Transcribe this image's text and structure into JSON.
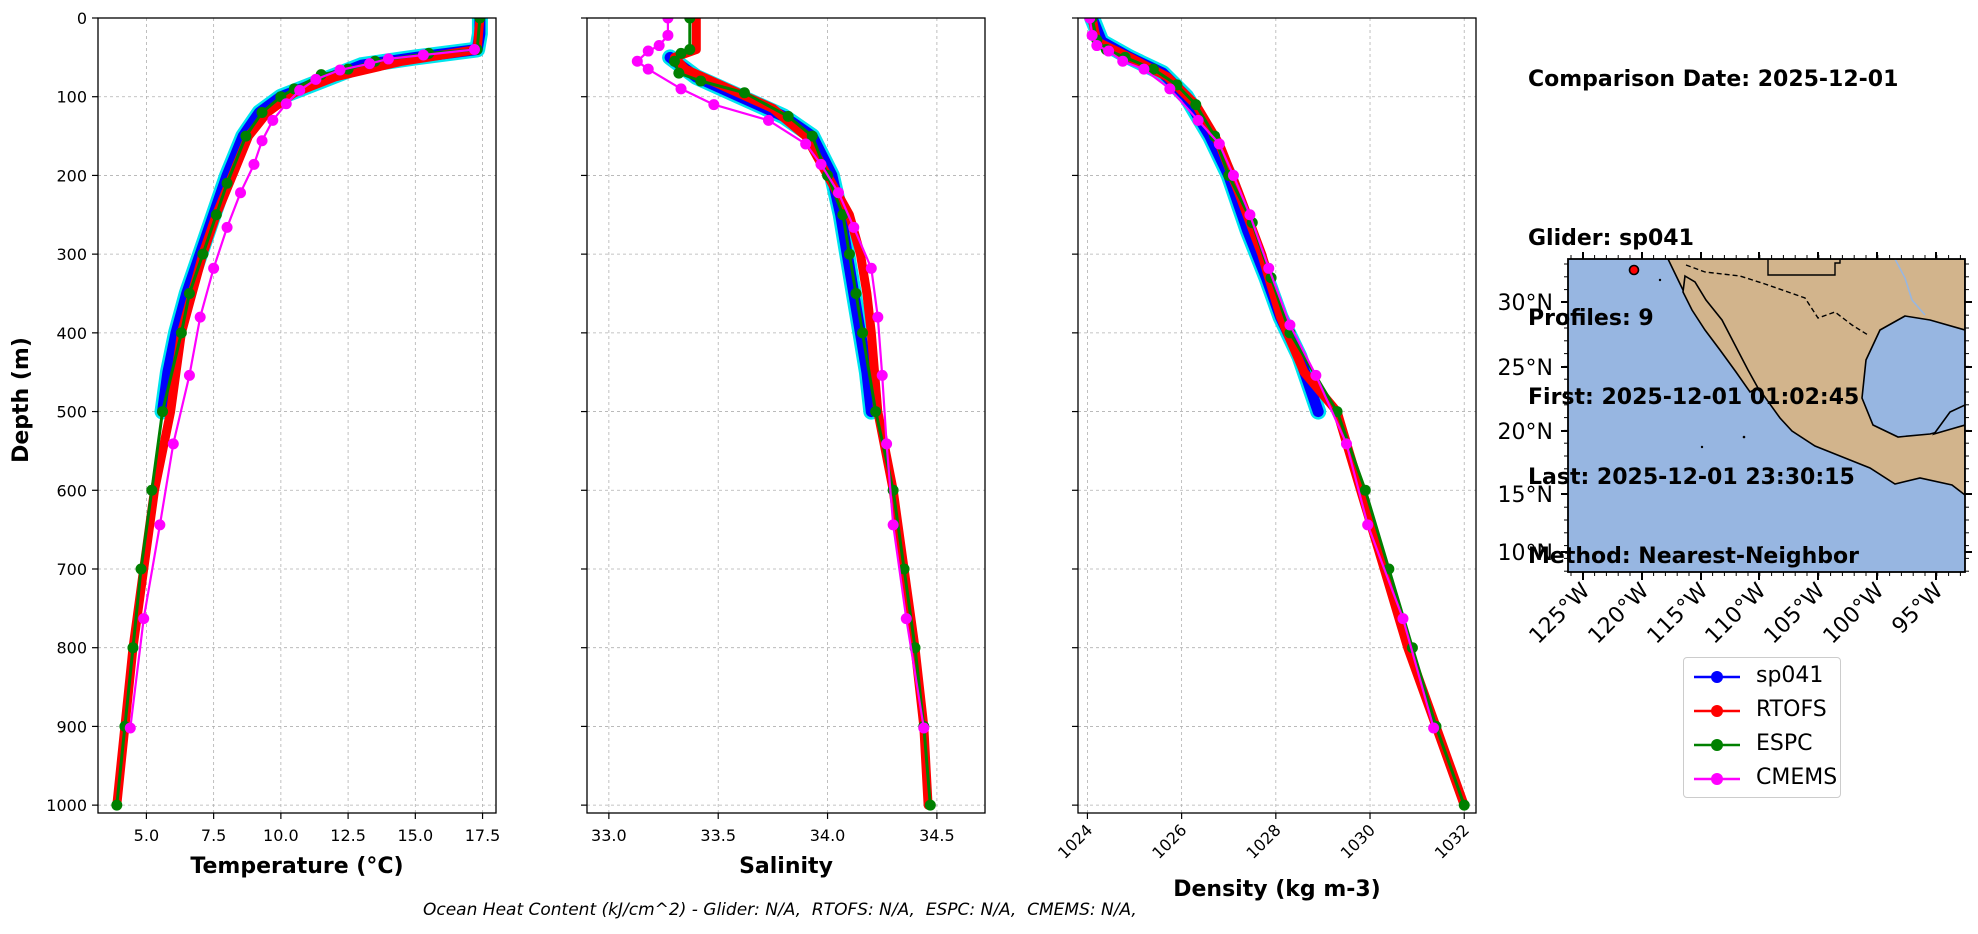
{
  "info": {
    "comparison_date": "Comparison Date: 2025-12-01",
    "glider": "Glider: sp041",
    "profiles": "Profiles: 9",
    "first": "First: 2025-12-01 01:02:45",
    "last": "Last: 2025-12-01 23:30:15",
    "method": "Method: Nearest-Neighbor"
  },
  "footer": "Ocean Heat Content (kJ/cm^2) - Glider: N/A,  RTOFS: N/A,  ESPC: N/A,  CMEMS: N/A,",
  "colors": {
    "sp041": "#0000ff",
    "sp041_alt": "#00e5ee",
    "RTOFS": "#ff0000",
    "ESPC": "#008000",
    "CMEMS": "#ff00ff",
    "ocean": "#97b6e1",
    "land": "#d2b48c"
  },
  "legend": [
    {
      "name": "sp041",
      "color": "#0000ff"
    },
    {
      "name": "RTOFS",
      "color": "#ff0000"
    },
    {
      "name": "ESPC",
      "color": "#008000"
    },
    {
      "name": "CMEMS",
      "color": "#ff00ff"
    }
  ],
  "chart_data": [
    {
      "type": "line",
      "xlabel": "Temperature (°C)",
      "ylabel": "Depth (m)",
      "xlim": [
        3.2,
        18.0
      ],
      "ylim": [
        1010,
        0
      ],
      "xticks": [
        5.0,
        7.5,
        10.0,
        12.5,
        15.0,
        17.5
      ],
      "xtick_labels": [
        "5.0",
        "7.5",
        "10.0",
        "12.5",
        "15.0",
        "17.5"
      ],
      "yticks": [
        0,
        100,
        200,
        300,
        400,
        500,
        600,
        700,
        800,
        900,
        1000
      ],
      "grid": true,
      "series": [
        {
          "name": "sp041",
          "color": "#0000ff",
          "points": [
            [
              17.4,
              0
            ],
            [
              17.4,
              20
            ],
            [
              17.3,
              40
            ],
            [
              15.0,
              50
            ],
            [
              13.0,
              60
            ],
            [
              11.5,
              80
            ],
            [
              10.0,
              100
            ],
            [
              9.2,
              120
            ],
            [
              8.6,
              150
            ],
            [
              8.0,
              200
            ],
            [
              7.5,
              250
            ],
            [
              7.0,
              300
            ],
            [
              6.5,
              350
            ],
            [
              6.1,
              400
            ],
            [
              5.8,
              450
            ],
            [
              5.6,
              500
            ]
          ]
        },
        {
          "name": "RTOFS",
          "color": "#ff0000",
          "points": [
            [
              17.4,
              0
            ],
            [
              17.3,
              40
            ],
            [
              14.5,
              55
            ],
            [
              12.0,
              75
            ],
            [
              10.5,
              95
            ],
            [
              9.5,
              120
            ],
            [
              8.8,
              150
            ],
            [
              8.2,
              200
            ],
            [
              7.6,
              250
            ],
            [
              7.1,
              300
            ],
            [
              6.7,
              350
            ],
            [
              6.3,
              400
            ],
            [
              5.9,
              500
            ],
            [
              5.3,
              600
            ],
            [
              4.9,
              700
            ],
            [
              4.5,
              800
            ],
            [
              4.2,
              900
            ],
            [
              3.9,
              1000
            ]
          ]
        },
        {
          "name": "ESPC",
          "color": "#008000",
          "points": [
            [
              17.4,
              0
            ],
            [
              17.3,
              40
            ],
            [
              15.5,
              45
            ],
            [
              13.5,
              55
            ],
            [
              12.5,
              65
            ],
            [
              11.5,
              72
            ],
            [
              10.5,
              90
            ],
            [
              10.0,
              100
            ],
            [
              9.3,
              120
            ],
            [
              8.7,
              150
            ],
            [
              8.0,
              210
            ],
            [
              7.6,
              250
            ],
            [
              7.1,
              300
            ],
            [
              6.6,
              350
            ],
            [
              6.3,
              400
            ],
            [
              5.6,
              500
            ],
            [
              5.2,
              600
            ],
            [
              4.8,
              700
            ],
            [
              4.5,
              800
            ],
            [
              4.2,
              900
            ],
            [
              3.9,
              1000
            ]
          ]
        },
        {
          "name": "CMEMS",
          "color": "#ff00ff",
          "points": [
            [
              17.2,
              40
            ],
            [
              15.3,
              47
            ],
            [
              14.0,
              52
            ],
            [
              13.3,
              58
            ],
            [
              12.2,
              66
            ],
            [
              11.3,
              78
            ],
            [
              10.7,
              92
            ],
            [
              10.2,
              109
            ],
            [
              9.7,
              130
            ],
            [
              9.3,
              156
            ],
            [
              9.0,
              186
            ],
            [
              8.5,
              222
            ],
            [
              8.0,
              266
            ],
            [
              7.5,
              318
            ],
            [
              7.0,
              380
            ],
            [
              6.6,
              454
            ],
            [
              6.0,
              541
            ],
            [
              5.5,
              644
            ],
            [
              4.9,
              763
            ],
            [
              4.4,
              902
            ]
          ]
        }
      ]
    },
    {
      "type": "line",
      "xlabel": "Salinity",
      "xlim": [
        32.9,
        34.72
      ],
      "ylim": [
        1010,
        0
      ],
      "xticks": [
        33.0,
        33.5,
        34.0,
        34.5
      ],
      "xtick_labels": [
        "33.0",
        "33.5",
        "34.0",
        "34.5"
      ],
      "grid": true,
      "series": [
        {
          "name": "sp041",
          "color": "#0000ff",
          "points": [
            [
              33.28,
              50
            ],
            [
              33.4,
              75
            ],
            [
              33.6,
              100
            ],
            [
              33.8,
              125
            ],
            [
              33.93,
              150
            ],
            [
              34.02,
              200
            ],
            [
              34.06,
              250
            ],
            [
              34.09,
              300
            ],
            [
              34.12,
              350
            ],
            [
              34.15,
              400
            ],
            [
              34.18,
              450
            ],
            [
              34.2,
              500
            ]
          ]
        },
        {
          "name": "RTOFS",
          "color": "#ff0000",
          "points": [
            [
              33.4,
              0
            ],
            [
              33.4,
              40
            ],
            [
              33.3,
              50
            ],
            [
              33.35,
              65
            ],
            [
              33.55,
              90
            ],
            [
              33.75,
              115
            ],
            [
              33.9,
              150
            ],
            [
              34.0,
              200
            ],
            [
              34.1,
              250
            ],
            [
              34.15,
              300
            ],
            [
              34.18,
              350
            ],
            [
              34.2,
              400
            ],
            [
              34.23,
              500
            ],
            [
              34.3,
              600
            ],
            [
              34.35,
              700
            ],
            [
              34.4,
              800
            ],
            [
              34.44,
              900
            ],
            [
              34.46,
              1000
            ]
          ]
        },
        {
          "name": "ESPC",
          "color": "#008000",
          "points": [
            [
              33.37,
              0
            ],
            [
              33.37,
              40
            ],
            [
              33.33,
              45
            ],
            [
              33.3,
              55
            ],
            [
              33.32,
              70
            ],
            [
              33.42,
              80
            ],
            [
              33.62,
              95
            ],
            [
              33.82,
              125
            ],
            [
              33.93,
              150
            ],
            [
              34.0,
              200
            ],
            [
              34.07,
              250
            ],
            [
              34.1,
              300
            ],
            [
              34.13,
              350
            ],
            [
              34.16,
              400
            ],
            [
              34.22,
              500
            ],
            [
              34.3,
              600
            ],
            [
              34.35,
              700
            ],
            [
              34.4,
              800
            ],
            [
              34.44,
              900
            ],
            [
              34.47,
              1000
            ]
          ]
        },
        {
          "name": "CMEMS",
          "color": "#ff00ff",
          "points": [
            [
              33.27,
              0
            ],
            [
              33.27,
              22
            ],
            [
              33.23,
              35
            ],
            [
              33.18,
              42
            ],
            [
              33.13,
              55
            ],
            [
              33.18,
              65
            ],
            [
              33.33,
              90
            ],
            [
              33.48,
              110
            ],
            [
              33.73,
              130
            ],
            [
              33.9,
              160
            ],
            [
              33.97,
              186
            ],
            [
              34.05,
              222
            ],
            [
              34.12,
              266
            ],
            [
              34.2,
              318
            ],
            [
              34.23,
              380
            ],
            [
              34.25,
              454
            ],
            [
              34.27,
              541
            ],
            [
              34.3,
              644
            ],
            [
              34.36,
              763
            ],
            [
              34.44,
              902
            ]
          ]
        }
      ]
    },
    {
      "type": "line",
      "xlabel": "Density (kg m-3)",
      "xlim": [
        1023.8,
        1032.25
      ],
      "ylim": [
        1010,
        0
      ],
      "xticks": [
        1024,
        1026,
        1028,
        1030,
        1032
      ],
      "xtick_labels": [
        "1024",
        "1026",
        "1028",
        "1030",
        "1032"
      ],
      "grid": true,
      "series": [
        {
          "name": "sp041",
          "color": "#0000ff",
          "points": [
            [
              1024.1,
              0
            ],
            [
              1024.3,
              30
            ],
            [
              1024.9,
              50
            ],
            [
              1025.6,
              70
            ],
            [
              1026.1,
              100
            ],
            [
              1026.6,
              150
            ],
            [
              1027.0,
              200
            ],
            [
              1027.4,
              270
            ],
            [
              1027.8,
              330
            ],
            [
              1028.1,
              380
            ],
            [
              1028.5,
              430
            ],
            [
              1028.9,
              500
            ]
          ]
        },
        {
          "name": "RTOFS",
          "color": "#ff0000",
          "points": [
            [
              1024.1,
              0
            ],
            [
              1024.2,
              30
            ],
            [
              1024.9,
              50
            ],
            [
              1025.7,
              75
            ],
            [
              1026.3,
              110
            ],
            [
              1026.8,
              160
            ],
            [
              1027.2,
              220
            ],
            [
              1027.7,
              300
            ],
            [
              1028.1,
              380
            ],
            [
              1028.6,
              450
            ],
            [
              1029.3,
              500
            ],
            [
              1029.8,
              600
            ],
            [
              1030.3,
              700
            ],
            [
              1030.8,
              800
            ],
            [
              1031.4,
              900
            ],
            [
              1032.0,
              1000
            ]
          ]
        },
        {
          "name": "ESPC",
          "color": "#008000",
          "points": [
            [
              1024.1,
              0
            ],
            [
              1024.2,
              28
            ],
            [
              1024.4,
              40
            ],
            [
              1024.8,
              50
            ],
            [
              1025.4,
              65
            ],
            [
              1025.9,
              85
            ],
            [
              1026.3,
              110
            ],
            [
              1026.7,
              150
            ],
            [
              1027.0,
              200
            ],
            [
              1027.5,
              260
            ],
            [
              1027.9,
              330
            ],
            [
              1028.3,
              400
            ],
            [
              1029.3,
              500
            ],
            [
              1029.9,
              600
            ],
            [
              1030.4,
              700
            ],
            [
              1030.9,
              800
            ],
            [
              1031.4,
              900
            ],
            [
              1032.0,
              1000
            ]
          ]
        },
        {
          "name": "CMEMS",
          "color": "#ff00ff",
          "points": [
            [
              1024.05,
              0
            ],
            [
              1024.1,
              22
            ],
            [
              1024.2,
              35
            ],
            [
              1024.45,
              42
            ],
            [
              1024.75,
              55
            ],
            [
              1025.2,
              65
            ],
            [
              1025.75,
              90
            ],
            [
              1026.35,
              130
            ],
            [
              1026.8,
              160
            ],
            [
              1027.1,
              200
            ],
            [
              1027.45,
              250
            ],
            [
              1027.85,
              318
            ],
            [
              1028.3,
              390
            ],
            [
              1028.85,
              454
            ],
            [
              1029.5,
              541
            ],
            [
              1029.95,
              644
            ],
            [
              1030.7,
              763
            ],
            [
              1031.35,
              902
            ]
          ]
        }
      ]
    }
  ],
  "map": {
    "lon_labels": [
      "125°W",
      "120°W",
      "115°W",
      "110°W",
      "105°W",
      "100°W",
      "95°W"
    ],
    "lat_labels": [
      "30°N",
      "25°N",
      "20°N",
      "15°N",
      "10°N"
    ],
    "glider_marker": [
      -119.8,
      32.5
    ]
  }
}
